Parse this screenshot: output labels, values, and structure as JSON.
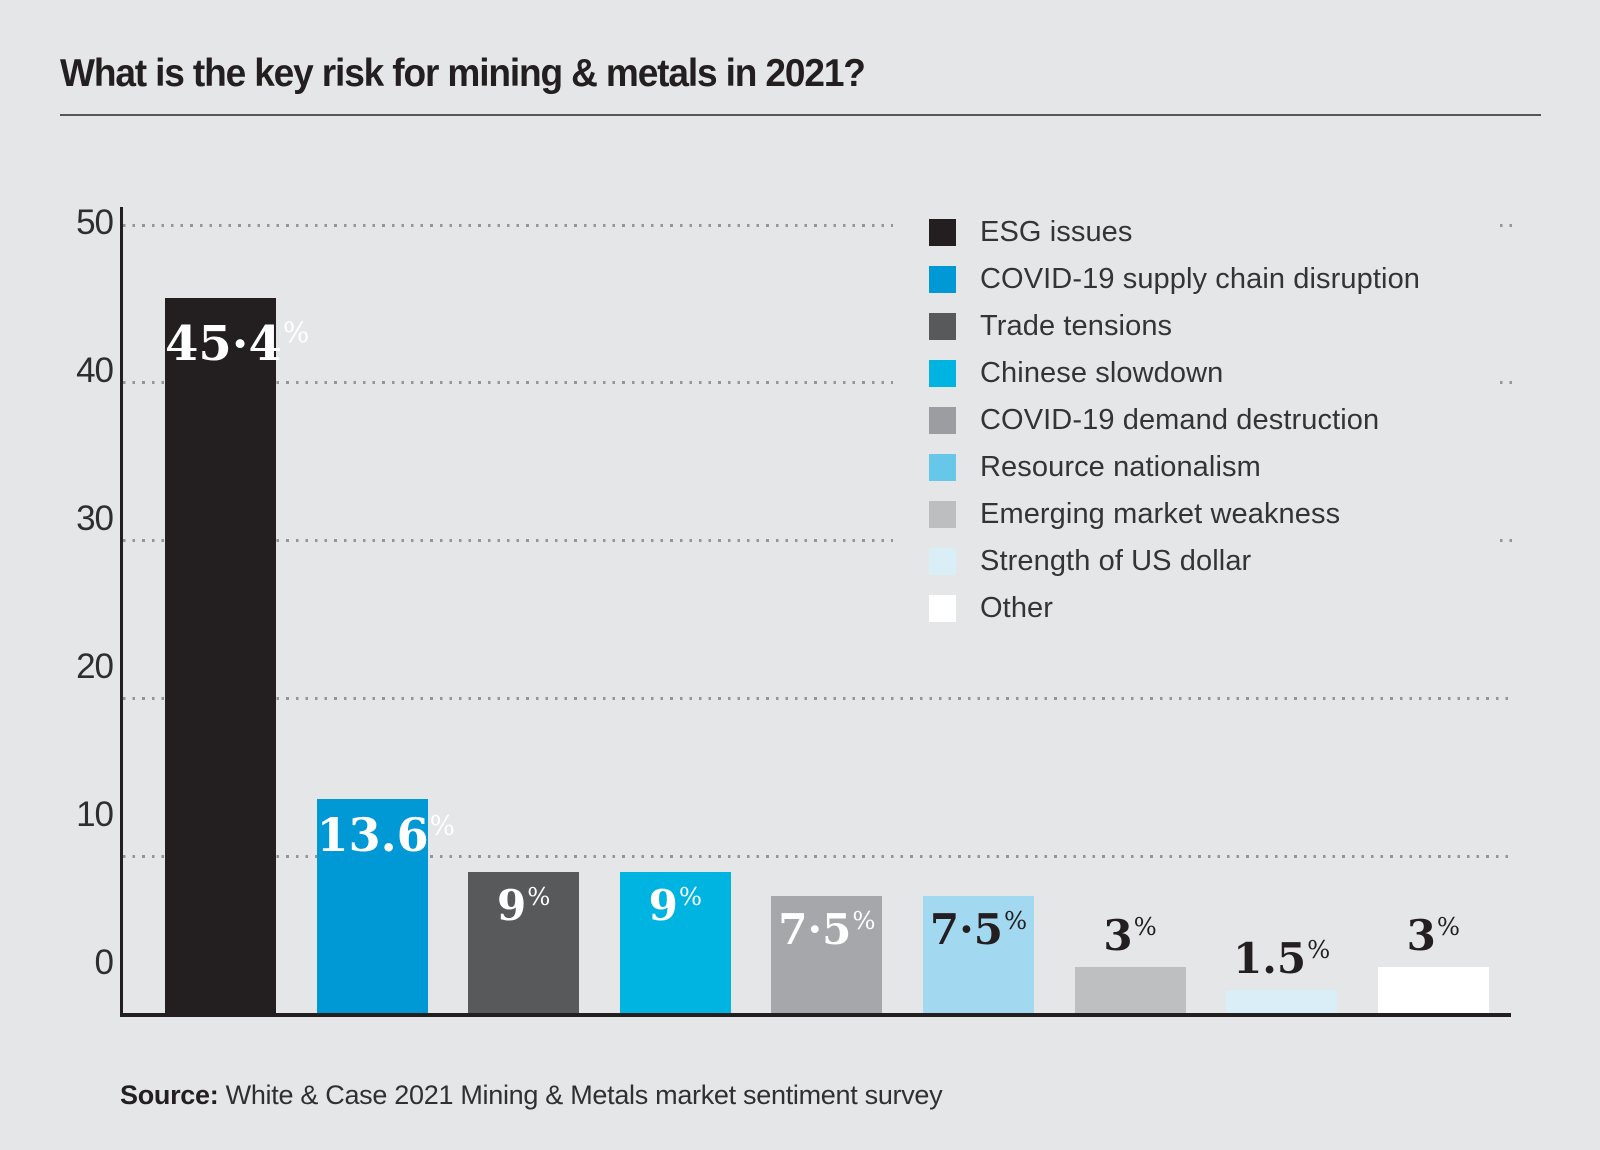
{
  "title": "What is the key risk for mining & metals in 2021?",
  "source": {
    "label": "Source:",
    "text": " White & Case 2021 Mining & Metals market sentiment survey"
  },
  "colors": {
    "background": "#e5e6e7",
    "text": "#231f20",
    "axis": "#231f20",
    "gridline_dots": "#939598"
  },
  "chart_data": {
    "type": "bar",
    "title": "What is the key risk for mining & metals in 2021?",
    "categories": [
      "ESG issues",
      "COVID-19 supply chain disruption",
      "Trade tensions",
      "Chinese slowdown",
      "COVID-19 demand destruction",
      "Resource nationalism",
      "Emerging market weakness",
      "Strength of US dollar",
      "Other"
    ],
    "values": [
      45.4,
      13.6,
      9,
      9,
      7.5,
      7.5,
      3,
      1.5,
      3
    ],
    "display_labels": [
      "45·4",
      "13.6",
      "9",
      "9",
      "7·5",
      "7·5",
      "3",
      "1.5",
      "3"
    ],
    "percent_sign": "%",
    "bar_colors": [
      "#231f20",
      "#0099d6",
      "#58595b",
      "#00b4e1",
      "#a5a7aa",
      "#a3d9f0",
      "#bdbfc1",
      "#daeef8",
      "#ffffff"
    ],
    "label_colors": [
      "#ffffff",
      "#ffffff",
      "#ffffff",
      "#ffffff",
      "#ffffff",
      "#231f20",
      "#231f20",
      "#231f20",
      "#231f20"
    ],
    "label_placement": [
      "inside",
      "inside",
      "inside",
      "inside",
      "inside",
      "inside",
      "above",
      "above",
      "above"
    ],
    "legend_colors": [
      "#231f20",
      "#0099d6",
      "#58595b",
      "#00b4e1",
      "#9b9da0",
      "#66c7e9",
      "#bcbec0",
      "#daeef8",
      "#ffffff"
    ],
    "xlabel": "",
    "ylabel": "",
    "ylim": [
      0,
      50
    ],
    "yticks": [
      0,
      10,
      20,
      30,
      40,
      50
    ],
    "grid": "dotted horizontal",
    "legend_position": "upper right"
  }
}
